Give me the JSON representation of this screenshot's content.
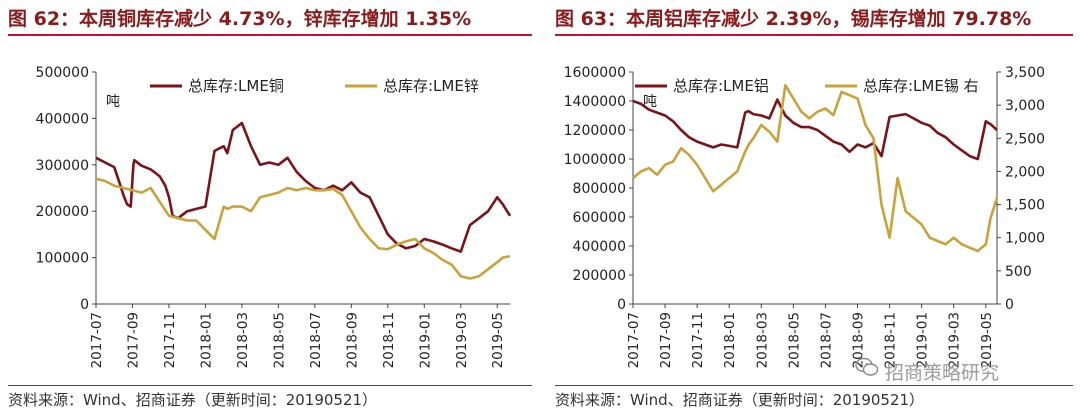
{
  "colors": {
    "primary": "#7b1317",
    "secondary": "#c9a23a",
    "title": "#8b1a1a",
    "rule": "#c8102e"
  },
  "source": "资料来源：Wind、招商证券（更新时间：20190521）",
  "watermark": "招商策略研究",
  "watermark_icon": "wechat-icon",
  "chart_data": [
    {
      "type": "line",
      "title": "图 62：本周铜库存减少 4.73%，锌库存增加 1.35%",
      "ylabel": "吨",
      "ylim": [
        0,
        500000
      ],
      "yticks": [
        0,
        100000,
        200000,
        300000,
        400000,
        500000
      ],
      "xticks": [
        "2017-07",
        "2017-09",
        "2017-11",
        "2018-01",
        "2018-03",
        "2018-05",
        "2018-07",
        "2018-09",
        "2018-11",
        "2019-01",
        "2019-03",
        "2019-05"
      ],
      "xlim": [
        0,
        22.7
      ],
      "legend_position": "top",
      "series": [
        {
          "name": "总库存:LME铜",
          "color": "#7b1317",
          "x": [
            0,
            0.5,
            1,
            1.3,
            1.5,
            1.7,
            1.9,
            2.05,
            2.1,
            2.5,
            3,
            3.5,
            3.8,
            4,
            4.2,
            4.5,
            5,
            5.5,
            6,
            6.5,
            7,
            7.2,
            7.5,
            8,
            8.5,
            9,
            9.5,
            10,
            10.5,
            11,
            11.5,
            12,
            12.5,
            13,
            13.5,
            14,
            14.5,
            15,
            15.5,
            16,
            16.5,
            17,
            17.5,
            18,
            18.5,
            19,
            19.5,
            20,
            20.5,
            21,
            21.5,
            22,
            22.3,
            22.7
          ],
          "y": [
            315000,
            305000,
            295000,
            260000,
            235000,
            215000,
            210000,
            300000,
            310000,
            298000,
            290000,
            275000,
            255000,
            230000,
            190000,
            185000,
            200000,
            205000,
            210000,
            330000,
            340000,
            325000,
            375000,
            390000,
            340000,
            300000,
            305000,
            300000,
            315000,
            285000,
            265000,
            250000,
            245000,
            255000,
            245000,
            262000,
            240000,
            230000,
            190000,
            150000,
            130000,
            120000,
            125000,
            140000,
            135000,
            128000,
            120000,
            113000,
            170000,
            185000,
            200000,
            230000,
            215000,
            190000
          ]
        },
        {
          "name": "总库存:LME锌",
          "color": "#c9a23a",
          "x": [
            0,
            0.5,
            1,
            1.5,
            2,
            2.5,
            3,
            3.5,
            4,
            4.5,
            5,
            5.5,
            6,
            6.5,
            7,
            7.2,
            7.5,
            8,
            8.5,
            9,
            9.5,
            10,
            10.5,
            11,
            11.5,
            12,
            12.5,
            13,
            13.5,
            14,
            14.5,
            15,
            15.5,
            16,
            16.5,
            17,
            17.5,
            18,
            18.5,
            19,
            19.5,
            20,
            20.5,
            21,
            21.5,
            22,
            22.3,
            22.7
          ],
          "y": [
            270000,
            265000,
            255000,
            250000,
            245000,
            240000,
            250000,
            220000,
            190000,
            185000,
            180000,
            180000,
            160000,
            140000,
            210000,
            205000,
            210000,
            210000,
            200000,
            230000,
            235000,
            240000,
            250000,
            245000,
            250000,
            245000,
            245000,
            248000,
            235000,
            200000,
            165000,
            140000,
            120000,
            118000,
            128000,
            135000,
            140000,
            120000,
            110000,
            95000,
            85000,
            60000,
            55000,
            60000,
            75000,
            90000,
            100000,
            103000
          ]
        }
      ]
    },
    {
      "type": "line",
      "title": "图 63：本周铝库存减少 2.39%，锡库存增加 79.78%",
      "ylabel": "吨",
      "ylim": [
        0,
        1600000
      ],
      "yticks": [
        0,
        200000,
        400000,
        600000,
        800000,
        1000000,
        1200000,
        1400000,
        1600000
      ],
      "y2lim": [
        0,
        3500
      ],
      "y2ticks": [
        "0",
        "500",
        "1,000",
        "1,500",
        "2,000",
        "2,500",
        "3,000",
        "3,500"
      ],
      "xticks": [
        "2017-07",
        "2017-09",
        "2017-11",
        "2018-01",
        "2018-03",
        "2018-05",
        "2018-07",
        "2018-09",
        "2018-11",
        "2019-01",
        "2019-03",
        "2019-05"
      ],
      "xlim": [
        0,
        22.7
      ],
      "legend_position": "top",
      "series": [
        {
          "name": "总库存:LME铝",
          "color": "#7b1317",
          "axis": "left",
          "x": [
            0,
            0.5,
            1,
            1.5,
            2,
            2.5,
            3,
            3.5,
            4,
            4.5,
            5,
            5.5,
            6,
            6.5,
            7,
            7.2,
            7.5,
            8,
            8.5,
            9,
            9.5,
            10,
            10.5,
            11,
            11.5,
            12,
            12.5,
            13,
            13.5,
            14,
            14.5,
            15,
            15.5,
            16,
            16.5,
            17,
            17.5,
            18,
            18.5,
            19,
            19.5,
            20,
            20.5,
            21,
            21.5,
            22,
            22.3,
            22.7
          ],
          "y": [
            1400000,
            1380000,
            1340000,
            1320000,
            1300000,
            1260000,
            1200000,
            1150000,
            1120000,
            1100000,
            1080000,
            1100000,
            1090000,
            1080000,
            1320000,
            1330000,
            1310000,
            1300000,
            1280000,
            1410000,
            1300000,
            1250000,
            1220000,
            1220000,
            1200000,
            1160000,
            1120000,
            1100000,
            1050000,
            1100000,
            1080000,
            1110000,
            1020000,
            1290000,
            1300000,
            1310000,
            1280000,
            1250000,
            1230000,
            1180000,
            1150000,
            1100000,
            1060000,
            1020000,
            1000000,
            1260000,
            1240000,
            1200000
          ]
        },
        {
          "name": "总库存:LME锡 右",
          "color": "#c9a23a",
          "axis": "right",
          "x": [
            0,
            0.5,
            1,
            1.5,
            2,
            2.5,
            3,
            3.5,
            4,
            4.5,
            5,
            5.5,
            6,
            6.5,
            7,
            7.2,
            7.5,
            8,
            8.5,
            9,
            9.5,
            10,
            10.5,
            11,
            11.5,
            12,
            12.5,
            13,
            13.5,
            14,
            14.5,
            15,
            15.5,
            16,
            16.5,
            17,
            17.5,
            18,
            18.5,
            19,
            19.5,
            20,
            20.5,
            21,
            21.5,
            22,
            22.3,
            22.7
          ],
          "y": [
            1900,
            2000,
            2050,
            1950,
            2100,
            2150,
            2350,
            2250,
            2100,
            1900,
            1700,
            1800,
            1900,
            2000,
            2300,
            2400,
            2500,
            2700,
            2600,
            2450,
            3300,
            3100,
            2900,
            2800,
            2900,
            2950,
            2850,
            3200,
            3150,
            3100,
            2700,
            2500,
            1500,
            1000,
            1900,
            1400,
            1300,
            1200,
            1000,
            950,
            900,
            1000,
            900,
            850,
            800,
            900,
            1300,
            1600
          ]
        }
      ]
    }
  ]
}
